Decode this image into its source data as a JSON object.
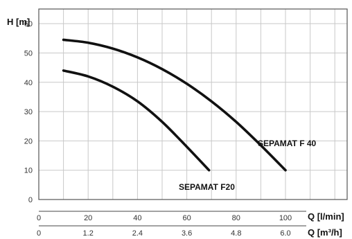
{
  "chart_data": {
    "type": "line",
    "ylabel": "H [m]",
    "xlabel": "Q [l/min]",
    "xlabel2": "Q [m³/h]",
    "xlim": [
      0,
      125
    ],
    "ylim": [
      0,
      65
    ],
    "yticks": [
      0,
      10,
      20,
      30,
      40,
      50,
      60
    ],
    "xticks": [
      0,
      20,
      40,
      60,
      80,
      100
    ],
    "xticks2": [
      "0",
      "1.2",
      "2.4",
      "3.6",
      "4.8",
      "6.0"
    ],
    "grid": true,
    "series": [
      {
        "name": "SEPAMAT F 40",
        "x": [
          10,
          20,
          30,
          40,
          50,
          60,
          70,
          80,
          90,
          100
        ],
        "y": [
          54.5,
          53.5,
          51.5,
          48.5,
          44.5,
          39.5,
          33.5,
          26.5,
          18.5,
          10
        ]
      },
      {
        "name": "SEPAMAT F20",
        "x": [
          10,
          20,
          30,
          40,
          50,
          60,
          69
        ],
        "y": [
          44,
          42,
          38.5,
          33.5,
          26.5,
          18,
          10
        ]
      }
    ]
  }
}
